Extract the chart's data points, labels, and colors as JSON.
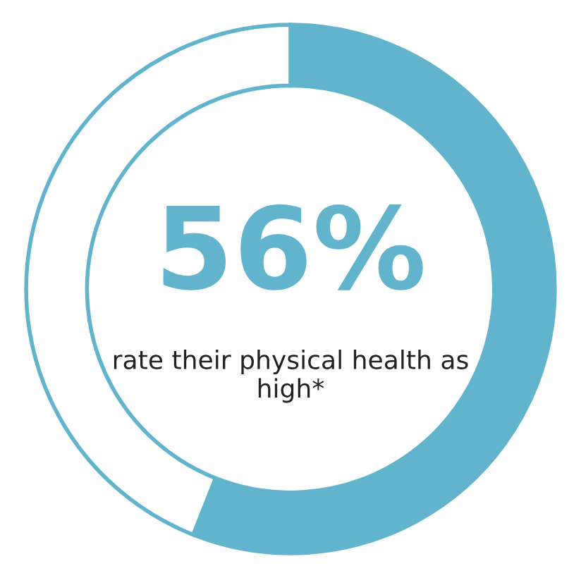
{
  "chart_data": {
    "type": "donut",
    "categories": [
      null,
      null
    ],
    "values": [
      56,
      44
    ],
    "colors": [
      "#62b4cc",
      "#ffffff"
    ],
    "annotations": [
      "56%",
      "rate their physical health as high*"
    ]
  }
}
